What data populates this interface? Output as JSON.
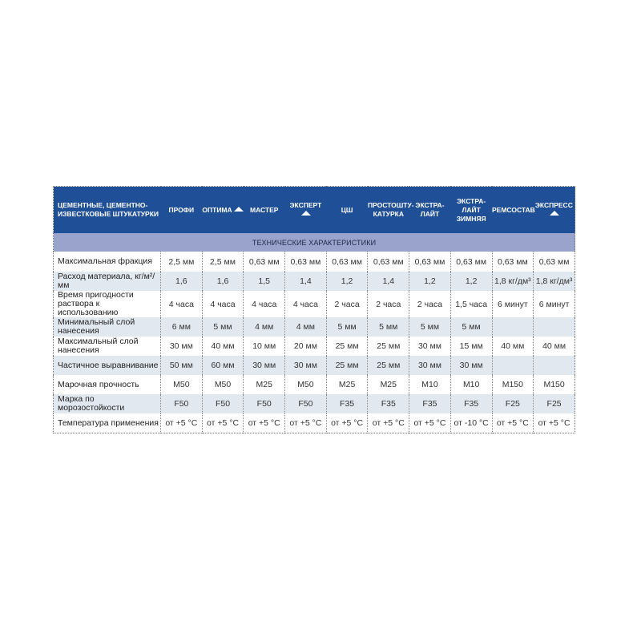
{
  "header": {
    "first": "ЦЕМЕНТНЫЕ, ЦЕМЕНТНО-ИЗВЕСТКОВЫЕ ШТУКАТУРКИ",
    "columns": [
      {
        "label": "ПРОФИ",
        "icon": false
      },
      {
        "label": "ОПТИМА",
        "icon": true
      },
      {
        "label": "МАСТЕР",
        "icon": false
      },
      {
        "label": "ЭКСПЕРТ",
        "icon": true
      },
      {
        "label": "ЦШ",
        "icon": false
      },
      {
        "label": "ПРОСТОШТУ- КАТУРКА",
        "icon": false
      },
      {
        "label": "ЭКСТРА- ЛАЙТ",
        "icon": false
      },
      {
        "label": "ЭКСТРА- ЛАЙТ ЗИМНЯЯ",
        "icon": false
      },
      {
        "label": "РЕМСОСТАВ",
        "icon": false
      },
      {
        "label": "ЭКСПРЕСС",
        "icon": true
      }
    ],
    "icon_name": "mountain-logo-icon"
  },
  "section": "ТЕХНИЧЕСКИЕ ХАРАКТЕРИСТИКИ",
  "rows": [
    {
      "label": "Максимальная фракция",
      "values": [
        "2,5 мм",
        "2,5 мм",
        "0,63 мм",
        "0,63 мм",
        "0,63 мм",
        "0,63 мм",
        "0,63 мм",
        "0,63 мм",
        "0,63 мм",
        "0,63 мм"
      ]
    },
    {
      "label": "Расход материала, кг/м²/мм",
      "values": [
        "1,6",
        "1,6",
        "1,5",
        "1,4",
        "1,2",
        "1,4",
        "1,2",
        "1,2",
        "1,8 кг/дм³",
        "1,8 кг/дм³"
      ]
    },
    {
      "label": "Время пригодности раствора к использованию",
      "values": [
        "4 часа",
        "4 часа",
        "4 часа",
        "4 часа",
        "2 часа",
        "2 часа",
        "2 часа",
        "1,5 часа",
        "6 минут",
        "6 минут"
      ]
    },
    {
      "label": "Минимальный слой нанесения",
      "values": [
        "6 мм",
        "5 мм",
        "4 мм",
        "4 мм",
        "5 мм",
        "5 мм",
        "5 мм",
        "5 мм",
        "",
        ""
      ]
    },
    {
      "label": "Максимальный слой нанесения",
      "values": [
        "30 мм",
        "40 мм",
        "10 мм",
        "20 мм",
        "25 мм",
        "25 мм",
        "30 мм",
        "15 мм",
        "40 мм",
        "40 мм"
      ]
    },
    {
      "label": "Частичное выравнивание",
      "values": [
        "50 мм",
        "60 мм",
        "30 мм",
        "30 мм",
        "25 мм",
        "25 мм",
        "30 мм",
        "30 мм",
        "",
        ""
      ]
    },
    {
      "label": "Марочная прочность",
      "values": [
        "M50",
        "M50",
        "M25",
        "M50",
        "M25",
        "M25",
        "M10",
        "M10",
        "M150",
        "M150"
      ]
    },
    {
      "label": "Марка по морозостойкости",
      "values": [
        "F50",
        "F50",
        "F50",
        "F50",
        "F35",
        "F35",
        "F35",
        "F35",
        "F25",
        "F25"
      ]
    },
    {
      "label": "Температура применения",
      "values": [
        "от +5 °C",
        "от +5 °C",
        "от +5 °C",
        "от +5 °C",
        "от +5 °C",
        "от +5 °C",
        "от +5 °C",
        "от -10 °C",
        "от +5 °C",
        "от +5 °C"
      ]
    }
  ],
  "colors": {
    "header": "#1f4f96",
    "section": "#9aa3cb",
    "row_shade": "#e2e8f0"
  }
}
